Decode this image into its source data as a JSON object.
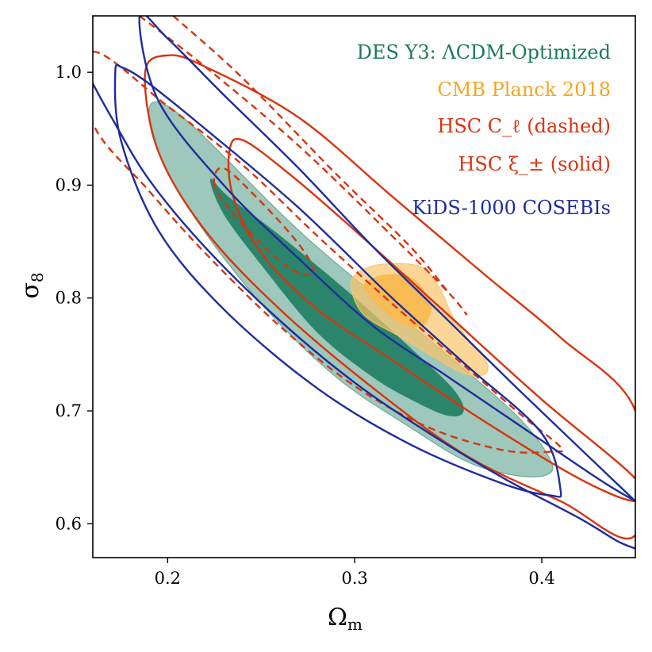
{
  "chart_data": {
    "type": "contour",
    "xlabel": "Ω",
    "xlabel_sub": "m",
    "ylabel": "σ",
    "ylabel_sub": "8",
    "xlim": [
      0.16,
      0.45
    ],
    "ylim": [
      0.57,
      1.05
    ],
    "xticks": [
      0.2,
      0.3,
      0.4
    ],
    "xtick_labels": [
      "0.2",
      "0.3",
      "0.4"
    ],
    "yticks": [
      0.6,
      0.7,
      0.8,
      0.9,
      1.0
    ],
    "ytick_labels": [
      "0.6",
      "0.7",
      "0.8",
      "0.9",
      "1.0"
    ],
    "legend_position": "top-right",
    "legend": [
      {
        "label": "DES Y3: ΛCDM-Optimized",
        "color": "#1b7a5a"
      },
      {
        "label": "CMB Planck 2018",
        "color": "#f5a623"
      },
      {
        "label": "HSC C_ℓ (dashed)",
        "color": "#d9340f"
      },
      {
        "label": "HSC ξ_± (solid)",
        "color": "#d9340f"
      },
      {
        "label": "KiDS-1000 COSEBIs",
        "color": "#1f2d9c"
      }
    ],
    "series": [
      {
        "name": "DES Y3 68%",
        "style": "filled",
        "color": "#006b4f",
        "opacity": 1.0,
        "points": [
          [
            0.223,
            0.905
          ],
          [
            0.232,
            0.89
          ],
          [
            0.26,
            0.855
          ],
          [
            0.3,
            0.8
          ],
          [
            0.33,
            0.755
          ],
          [
            0.352,
            0.72
          ],
          [
            0.358,
            0.7
          ],
          [
            0.35,
            0.696
          ],
          [
            0.333,
            0.708
          ],
          [
            0.31,
            0.73
          ],
          [
            0.28,
            0.77
          ],
          [
            0.25,
            0.83
          ],
          [
            0.23,
            0.875
          ]
        ]
      },
      {
        "name": "DES Y3 95%",
        "style": "filled",
        "color": "#4f9a83",
        "opacity": 0.55,
        "points": [
          [
            0.19,
            0.965
          ],
          [
            0.196,
            0.973
          ],
          [
            0.215,
            0.95
          ],
          [
            0.27,
            0.86
          ],
          [
            0.32,
            0.79
          ],
          [
            0.36,
            0.735
          ],
          [
            0.39,
            0.69
          ],
          [
            0.405,
            0.655
          ],
          [
            0.402,
            0.643
          ],
          [
            0.385,
            0.643
          ],
          [
            0.36,
            0.655
          ],
          [
            0.33,
            0.685
          ],
          [
            0.29,
            0.73
          ],
          [
            0.25,
            0.795
          ],
          [
            0.215,
            0.87
          ],
          [
            0.195,
            0.93
          ]
        ]
      },
      {
        "name": "Planck 68%",
        "style": "filled",
        "color": "#f7a51f",
        "opacity": 1.0,
        "points": [
          [
            0.305,
            0.812
          ],
          [
            0.315,
            0.82
          ],
          [
            0.33,
            0.818
          ],
          [
            0.34,
            0.798
          ],
          [
            0.34,
            0.785
          ],
          [
            0.335,
            0.775
          ],
          [
            0.325,
            0.778
          ],
          [
            0.315,
            0.79
          ],
          [
            0.307,
            0.805
          ]
        ]
      },
      {
        "name": "Planck 95%",
        "style": "filled",
        "color": "#f9c46a",
        "opacity": 0.7,
        "points": [
          [
            0.298,
            0.81
          ],
          [
            0.302,
            0.823
          ],
          [
            0.315,
            0.83
          ],
          [
            0.335,
            0.828
          ],
          [
            0.345,
            0.81
          ],
          [
            0.352,
            0.785
          ],
          [
            0.36,
            0.765
          ],
          [
            0.37,
            0.745
          ],
          [
            0.37,
            0.733
          ],
          [
            0.36,
            0.732
          ],
          [
            0.345,
            0.745
          ],
          [
            0.325,
            0.765
          ],
          [
            0.305,
            0.785
          ]
        ]
      },
      {
        "name": "HSC C_ell 68%",
        "style": "dashed",
        "color": "#d9340f",
        "opacity": 1.0,
        "points": [
          [
            0.225,
            0.9
          ],
          [
            0.23,
            0.915
          ],
          [
            0.25,
            0.885
          ],
          [
            0.27,
            0.848
          ],
          [
            0.278,
            0.824
          ],
          [
            0.27,
            0.822
          ],
          [
            0.255,
            0.84
          ],
          [
            0.235,
            0.875
          ]
        ]
      },
      {
        "name": "HSC C_ell 95%",
        "style": "dashed",
        "color": "#d9340f",
        "opacity": 1.0,
        "points": [
          [
            0.16,
            1.018
          ],
          [
            0.2,
            0.97
          ],
          [
            0.24,
            0.918
          ],
          [
            0.28,
            0.855
          ],
          [
            0.32,
            0.795
          ],
          [
            0.36,
            0.738
          ],
          [
            0.39,
            0.695
          ],
          [
            0.41,
            0.668
          ],
          [
            0.406,
            0.664
          ],
          [
            0.38,
            0.665
          ],
          [
            0.34,
            0.685
          ],
          [
            0.3,
            0.722
          ],
          [
            0.26,
            0.775
          ],
          [
            0.22,
            0.84
          ],
          [
            0.19,
            0.895
          ],
          [
            0.16,
            0.955
          ]
        ]
      },
      {
        "name": "HSC C_ell 95% upper",
        "style": "dashed",
        "color": "#d9340f",
        "opacity": 1.0,
        "points": [
          [
            0.185,
            1.05
          ],
          [
            0.22,
            1.005
          ],
          [
            0.27,
            0.935
          ],
          [
            0.32,
            0.855
          ],
          [
            0.35,
            0.805
          ],
          [
            0.36,
            0.785
          ]
        ]
      },
      {
        "name": "HSC C_ell 95% upper 2",
        "style": "dashed",
        "color": "#d9340f",
        "opacity": 1.0,
        "points": [
          [
            0.203,
            1.05
          ],
          [
            0.24,
            0.995
          ],
          [
            0.29,
            0.91
          ],
          [
            0.33,
            0.845
          ],
          [
            0.35,
            0.805
          ]
        ]
      },
      {
        "name": "HSC xi_pm 68%",
        "style": "solid",
        "color": "#d9340f",
        "opacity": 1.0,
        "points": [
          [
            0.233,
            0.93
          ],
          [
            0.24,
            0.94
          ],
          [
            0.265,
            0.91
          ],
          [
            0.3,
            0.86
          ],
          [
            0.35,
            0.785
          ],
          [
            0.4,
            0.71
          ],
          [
            0.45,
            0.64
          ],
          [
            0.45,
            0.62
          ],
          [
            0.42,
            0.64
          ],
          [
            0.37,
            0.69
          ],
          [
            0.32,
            0.745
          ],
          [
            0.28,
            0.79
          ],
          [
            0.25,
            0.84
          ],
          [
            0.235,
            0.89
          ]
        ]
      },
      {
        "name": "HSC xi_pm 95%",
        "style": "solid",
        "color": "#d9340f",
        "opacity": 1.0,
        "points": [
          [
            0.188,
            1.0
          ],
          [
            0.2,
            1.015
          ],
          [
            0.22,
            1.005
          ],
          [
            0.27,
            0.96
          ],
          [
            0.32,
            0.89
          ],
          [
            0.37,
            0.82
          ],
          [
            0.41,
            0.765
          ],
          [
            0.45,
            0.7
          ],
          [
            0.45,
            0.59
          ],
          [
            0.41,
            0.62
          ],
          [
            0.36,
            0.66
          ],
          [
            0.31,
            0.72
          ],
          [
            0.26,
            0.79
          ],
          [
            0.22,
            0.86
          ],
          [
            0.195,
            0.93
          ]
        ]
      },
      {
        "name": "KiDS 68%",
        "style": "solid",
        "color": "#1f2d9c",
        "opacity": 1.0,
        "points": [
          [
            0.185,
            1.05
          ],
          [
            0.2,
            1.03
          ],
          [
            0.23,
            0.98
          ],
          [
            0.27,
            0.915
          ],
          [
            0.31,
            0.845
          ],
          [
            0.35,
            0.78
          ],
          [
            0.39,
            0.715
          ],
          [
            0.45,
            0.62
          ],
          [
            0.45,
            0.62
          ],
          [
            0.43,
            0.64
          ],
          [
            0.39,
            0.685
          ],
          [
            0.35,
            0.73
          ],
          [
            0.31,
            0.775
          ],
          [
            0.27,
            0.835
          ],
          [
            0.23,
            0.9
          ],
          [
            0.195,
            0.975
          ]
        ]
      },
      {
        "name": "KiDS 95% inner",
        "style": "solid",
        "color": "#1f2d9c",
        "opacity": 1.0,
        "points": [
          [
            0.172,
            1.0
          ],
          [
            0.176,
            1.004
          ],
          [
            0.19,
            0.99
          ],
          [
            0.22,
            0.95
          ],
          [
            0.27,
            0.88
          ],
          [
            0.32,
            0.8
          ],
          [
            0.36,
            0.74
          ],
          [
            0.4,
            0.68
          ],
          [
            0.41,
            0.63
          ],
          [
            0.405,
            0.625
          ],
          [
            0.38,
            0.635
          ],
          [
            0.33,
            0.67
          ],
          [
            0.28,
            0.72
          ],
          [
            0.23,
            0.79
          ],
          [
            0.195,
            0.86
          ],
          [
            0.175,
            0.94
          ]
        ]
      },
      {
        "name": "KiDS 95% outer",
        "style": "solid",
        "color": "#1f2d9c",
        "opacity": 1.0,
        "points": [
          [
            0.16,
            0.99
          ],
          [
            0.17,
            0.96
          ],
          [
            0.19,
            0.905
          ],
          [
            0.22,
            0.845
          ],
          [
            0.26,
            0.78
          ],
          [
            0.3,
            0.725
          ],
          [
            0.34,
            0.68
          ],
          [
            0.38,
            0.64
          ],
          [
            0.42,
            0.605
          ],
          [
            0.44,
            0.585
          ],
          [
            0.45,
            0.578
          ]
        ]
      }
    ]
  }
}
